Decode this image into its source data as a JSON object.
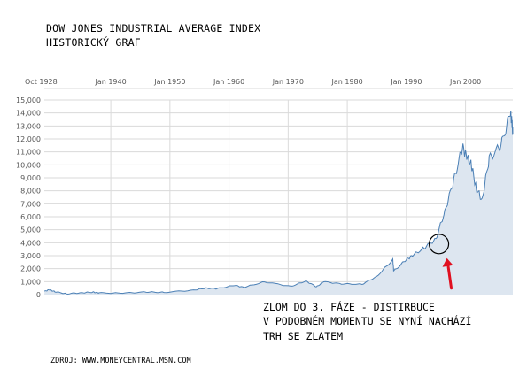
{
  "header": {
    "title_line1": "DOW JONES INDUSTRIAL AVERAGE INDEX",
    "title_line2": "HISTORICKÝ GRAF"
  },
  "annotation": {
    "line1": "ZLOM DO 3. FÁZE - DISTIRBUCE",
    "line2": "V PODOBNÉM MOMENTU SE NYNÍ NACHÁZÍ",
    "line3": "TRH SE ZLATEM",
    "marker_year": 1995.5,
    "marker_value": 3900
  },
  "footer": {
    "source": "ZDROJ: WWW.MONEYCENTRAL.MSN.COM"
  },
  "colors": {
    "line": "#4a7fb5",
    "fill": "#dde6f0",
    "grid": "#dadada",
    "axis_text": "#555555",
    "arrow": "#e01020",
    "circle": "#000000"
  },
  "chart_data": {
    "type": "area",
    "xlabel": "",
    "ylabel": "",
    "x_tick_labels": [
      "Oct 1928",
      "Jan 1940",
      "Jan 1950",
      "Jan 1960",
      "Jan 1970",
      "Jan 1980",
      "Jan 1990",
      "Jan 2000"
    ],
    "x_tick_years": [
      1928.75,
      1940,
      1950,
      1960,
      1970,
      1980,
      1990,
      2000
    ],
    "y_tick_labels": [
      "0",
      "1,000",
      "2,000",
      "3,000",
      "4,000",
      "5,000",
      "6,000",
      "7,000",
      "8,000",
      "9,000",
      "10,000",
      "11,000",
      "12,000",
      "13,000",
      "14,000",
      "15,000"
    ],
    "xlim": [
      1928.75,
      2008.0
    ],
    "ylim": [
      0,
      15000
    ],
    "grid": true,
    "x": [
      1928.8,
      1929.6,
      1930.5,
      1932.5,
      1935,
      1937,
      1938,
      1942,
      1946,
      1949,
      1954,
      1956,
      1958,
      1961,
      1962.5,
      1966,
      1970.5,
      1973,
      1974.8,
      1976,
      1979,
      1982.5,
      1985,
      1987.7,
      1987.85,
      1990,
      1991,
      1993,
      1995,
      1996.5,
      1998,
      1999.5,
      2000.2,
      2001,
      2001.8,
      2002.8,
      2004,
      2006,
      2007.6,
      2007.85,
      2008.0
    ],
    "y": [
      250,
      380,
      230,
      60,
      140,
      190,
      130,
      110,
      200,
      170,
      350,
      500,
      460,
      720,
      560,
      990,
      640,
      1050,
      600,
      1000,
      830,
      800,
      1400,
      2700,
      1800,
      2700,
      3000,
      3600,
      4300,
      6400,
      8800,
      11400,
      10600,
      10000,
      8200,
      7300,
      10500,
      11500,
      14000,
      13300,
      12400
    ],
    "series": [
      {
        "values": [
          250,
          380,
          230,
          60,
          140,
          190,
          130,
          110,
          200,
          170,
          350,
          500,
          460,
          720,
          560,
          990,
          640,
          1050,
          600,
          1000,
          830,
          800,
          1400,
          2700,
          1800,
          2700,
          3000,
          3600,
          4300,
          6400,
          8800,
          11400,
          10600,
          10000,
          8200,
          7300,
          10500,
          11500,
          14000,
          13300,
          12400
        ]
      }
    ]
  }
}
